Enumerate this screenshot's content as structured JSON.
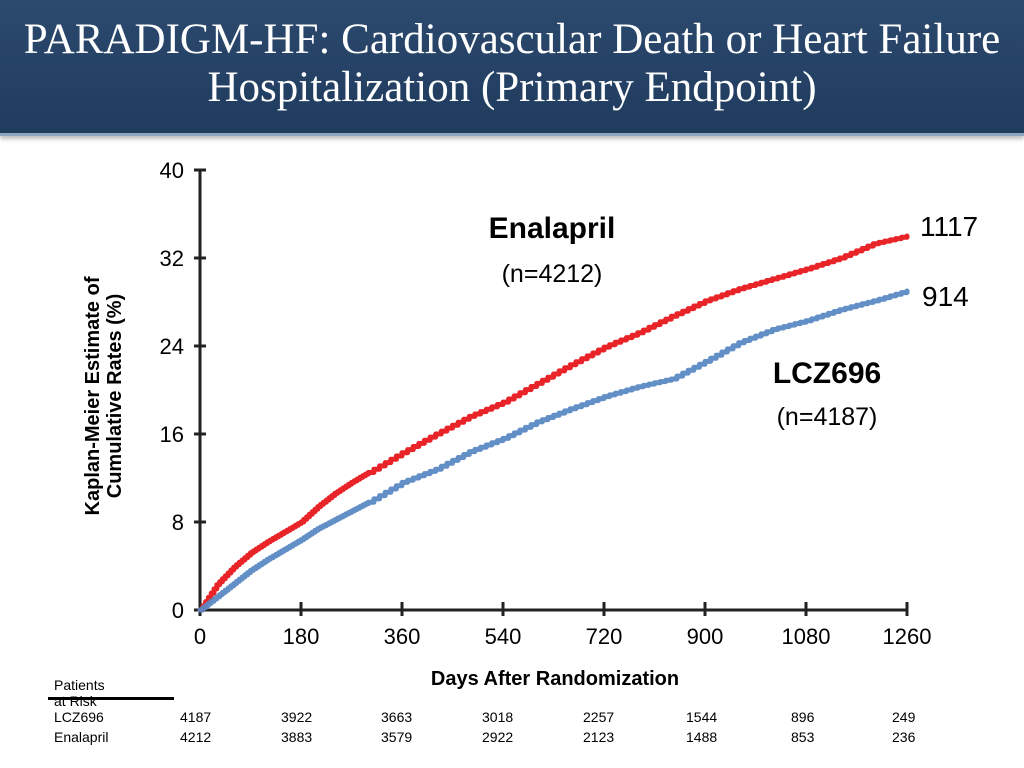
{
  "slide": {
    "title": "PARADIGM-HF: Cardiovascular Death or Heart Failure Hospitalization (Primary Endpoint)"
  },
  "colors": {
    "header_bg": "#24426a",
    "enalapril": "#e8181c",
    "lcz696": "#5b89c4"
  },
  "chart_data": {
    "type": "line",
    "title": "",
    "xlabel": "Days After Randomization",
    "ylabel": "Kaplan-Meier Estimate of Cumulative Rates (%)",
    "xlim": [
      0,
      1260
    ],
    "ylim": [
      0,
      40
    ],
    "x_ticks": [
      0,
      180,
      360,
      540,
      720,
      900,
      1080,
      1260
    ],
    "y_ticks": [
      0,
      8,
      16,
      24,
      32,
      40
    ],
    "grid": false,
    "series": [
      {
        "name": "Enalapril",
        "n_label": "(n=4212)",
        "end_label": "1117",
        "color": "#e8181c",
        "x": [
          0,
          30,
          60,
          90,
          120,
          150,
          180,
          210,
          240,
          270,
          300,
          360,
          420,
          480,
          540,
          600,
          660,
          720,
          780,
          840,
          900,
          960,
          1020,
          1080,
          1140,
          1200,
          1260
        ],
        "y": [
          0,
          2.3,
          3.9,
          5.2,
          6.2,
          7.1,
          8.0,
          9.4,
          10.6,
          11.6,
          12.5,
          14.3,
          16.0,
          17.6,
          18.9,
          20.6,
          22.3,
          23.9,
          25.2,
          26.7,
          28.1,
          29.2,
          30.1,
          31.0,
          32.0,
          33.3,
          34.0
        ]
      },
      {
        "name": "LCZ696",
        "n_label": "(n=4187)",
        "end_label": "914",
        "color": "#5b89c4",
        "x": [
          0,
          30,
          60,
          90,
          120,
          150,
          180,
          210,
          240,
          270,
          300,
          360,
          420,
          480,
          540,
          600,
          660,
          720,
          780,
          840,
          900,
          960,
          1020,
          1080,
          1140,
          1200,
          1260
        ],
        "y": [
          0,
          1.2,
          2.4,
          3.6,
          4.6,
          5.5,
          6.4,
          7.4,
          8.2,
          9.0,
          9.8,
          11.6,
          12.8,
          14.4,
          15.6,
          17.1,
          18.3,
          19.4,
          20.3,
          21.0,
          22.6,
          24.3,
          25.5,
          26.3,
          27.3,
          28.1,
          29.0
        ]
      }
    ]
  },
  "risk_table": {
    "title": "Patients at Risk",
    "rows": [
      {
        "label": "LCZ696",
        "values": [
          "4187",
          "3922",
          "3663",
          "3018",
          "2257",
          "1544",
          "896",
          "249"
        ]
      },
      {
        "label": "Enalapril",
        "values": [
          "4212",
          "3883",
          "3579",
          "2922",
          "2123",
          "1488",
          "853",
          "236"
        ]
      }
    ]
  }
}
